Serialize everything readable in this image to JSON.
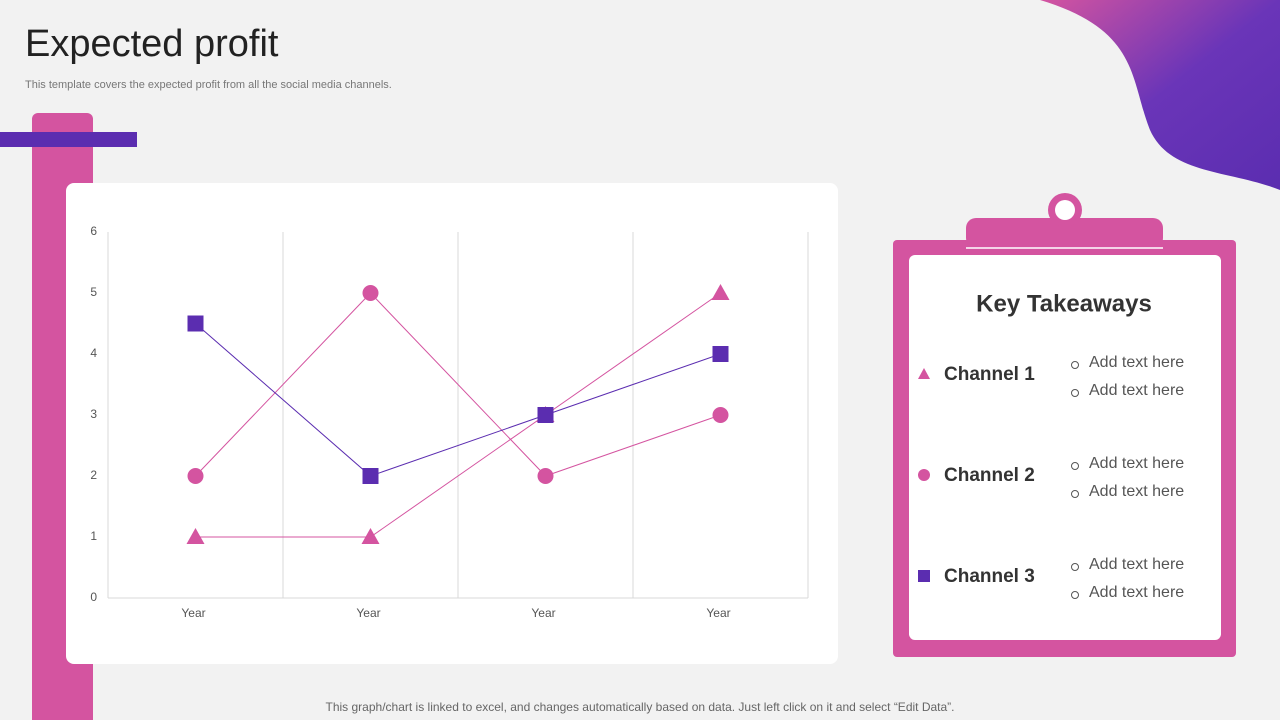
{
  "title": "Expected profit",
  "subtitle": "This template covers the expected profit from all the social media channels.",
  "footer": "This graph/chart is linked to excel,  and changes automatically based on data. Just left click on it and select “Edit Data”.",
  "chart_data": {
    "type": "line",
    "categories": [
      "Year",
      "Year",
      "Year",
      "Year"
    ],
    "series": [
      {
        "name": "Channel 1",
        "color": "#d454a0",
        "marker": "triangle",
        "values": [
          1,
          1,
          3,
          5
        ]
      },
      {
        "name": "Channel 2",
        "color": "#d454a0",
        "marker": "circle",
        "values": [
          2,
          5,
          2,
          3
        ]
      },
      {
        "name": "Channel 3",
        "color": "#5b2db0",
        "marker": "square",
        "values": [
          4.5,
          2,
          3,
          4
        ]
      }
    ],
    "ylim": [
      0,
      6
    ],
    "yticks": [
      0,
      1,
      2,
      3,
      4,
      5,
      6
    ],
    "grid": "x"
  },
  "takeaways": {
    "title": "Key Takeaways",
    "items": [
      {
        "points": [
          "Add text here",
          "Add text here"
        ]
      },
      {
        "points": [
          "Add text here",
          "Add text here"
        ]
      },
      {
        "points": [
          "Add text here",
          "Add text here"
        ]
      }
    ]
  }
}
